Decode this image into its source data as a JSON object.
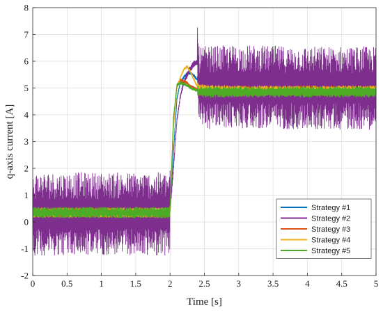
{
  "chart_data": {
    "type": "line",
    "title": "",
    "xlabel": "Time [s]",
    "ylabel": "q-axis current [A]",
    "xlim": [
      0,
      5
    ],
    "ylim": [
      -2,
      8
    ],
    "x_ticks": [
      0,
      0.5,
      1,
      1.5,
      2,
      2.5,
      3,
      3.5,
      4,
      4.5,
      5
    ],
    "y_ticks": [
      -2,
      -1,
      0,
      1,
      2,
      3,
      4,
      5,
      6,
      7,
      8
    ],
    "x_tick_labels": [
      "0",
      "0.5",
      "1",
      "1.5",
      "2",
      "2.5",
      "3",
      "3.5",
      "4",
      "4.5",
      "5"
    ],
    "y_tick_labels": [
      "-2",
      "-1",
      "0",
      "1",
      "2",
      "3",
      "4",
      "5",
      "6",
      "7",
      "8"
    ],
    "grid": true,
    "legend_position": "bottom-right",
    "series": [
      {
        "name": "Strategy #1",
        "color": "#0072BD",
        "x": [
          0,
          1.99,
          2.0,
          2.05,
          2.1,
          2.15,
          2.2,
          2.25,
          2.3,
          2.35,
          2.4,
          2.42,
          3.0,
          4.0,
          5.0
        ],
        "values": [
          0.35,
          0.35,
          0.4,
          2.6,
          4.6,
          5.2,
          5.4,
          5.55,
          5.55,
          5.45,
          5.3,
          4.9,
          4.9,
          4.9,
          4.9
        ],
        "noise_amplitude": 0.15
      },
      {
        "name": "Strategy #2",
        "color": "#7E2F8E",
        "x": [
          0,
          1.99,
          2.0,
          2.05,
          2.1,
          2.15,
          2.2,
          2.25,
          2.3,
          2.35,
          2.4,
          2.42,
          3.0,
          4.0,
          5.0
        ],
        "values": [
          0.3,
          0.3,
          0.4,
          2.0,
          3.8,
          4.7,
          5.2,
          5.5,
          5.75,
          5.9,
          5.95,
          5.0,
          5.05,
          5.0,
          5.0
        ],
        "noise_amplitude": 1.55
      },
      {
        "name": "Strategy #3",
        "color": "#D95319",
        "x": [
          0,
          1.99,
          2.0,
          2.05,
          2.1,
          2.15,
          2.2,
          2.25,
          2.3,
          2.35,
          2.4,
          2.42,
          3.0,
          4.0,
          5.0
        ],
        "values": [
          0.35,
          0.35,
          0.4,
          3.8,
          5.1,
          5.3,
          5.25,
          5.2,
          5.05,
          5.0,
          4.95,
          4.9,
          4.9,
          4.9,
          4.9
        ],
        "noise_amplitude": 0.18
      },
      {
        "name": "Strategy #4",
        "color": "#EDB120",
        "x": [
          0,
          1.99,
          2.0,
          2.05,
          2.1,
          2.15,
          2.2,
          2.25,
          2.3,
          2.35,
          2.4,
          2.42,
          3.0,
          4.0,
          5.0
        ],
        "values": [
          0.35,
          0.35,
          0.4,
          3.5,
          5.0,
          5.4,
          5.7,
          5.8,
          5.6,
          5.3,
          5.05,
          4.95,
          4.9,
          4.9,
          4.9
        ],
        "noise_amplitude": 0.18
      },
      {
        "name": "Strategy #5",
        "color": "#4DAC26",
        "x": [
          0,
          1.99,
          2.0,
          2.05,
          2.1,
          2.15,
          2.2,
          2.25,
          2.3,
          2.35,
          2.4,
          2.42,
          3.0,
          4.0,
          5.0
        ],
        "values": [
          0.35,
          0.35,
          0.4,
          3.9,
          5.1,
          5.2,
          5.15,
          5.1,
          5.0,
          4.95,
          4.9,
          4.85,
          4.85,
          4.85,
          4.85
        ],
        "noise_amplitude": 0.2
      }
    ]
  }
}
